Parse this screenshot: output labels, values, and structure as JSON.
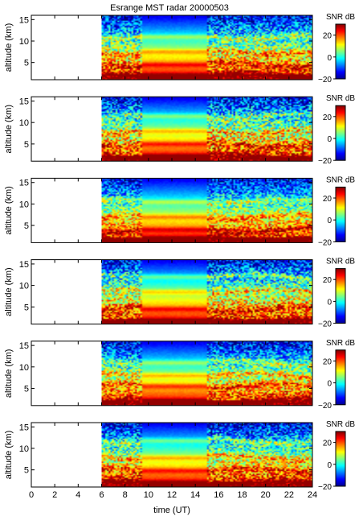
{
  "chart_data": {
    "type": "heatmap",
    "title": "Esrange MST radar 20000503",
    "xlabel": "time (UT)",
    "ylabel": "altitude (km)",
    "xlim": [
      0,
      24
    ],
    "ylim": [
      1,
      16
    ],
    "xticks": [
      "0",
      "2",
      "4",
      "6",
      "8",
      "10",
      "12",
      "14",
      "16",
      "18",
      "20",
      "22",
      "24"
    ],
    "yticks": [
      "5",
      "10",
      "15"
    ],
    "colorbar": {
      "label": "SNR dB",
      "ticks": [
        "20",
        "0",
        "−20"
      ],
      "range": [
        -20,
        30
      ],
      "colormap": "jet"
    },
    "data_start_hour": 6,
    "uniform_block_hours": [
      9.5,
      15
    ],
    "panels": [
      {
        "layer_altitudes_km": [
          2.0,
          4.5,
          7.5,
          11.0
        ],
        "noise_level": 0.2
      },
      {
        "layer_altitudes_km": [
          2.2,
          5.0,
          8.0,
          11.5
        ],
        "noise_level": 0.22
      },
      {
        "layer_altitudes_km": [
          2.0,
          4.0,
          7.0,
          10.5
        ],
        "noise_level": 0.18
      },
      {
        "layer_altitudes_km": [
          1.8,
          4.5,
          8.5,
          12.0
        ],
        "noise_level": 0.21
      },
      {
        "layer_altitudes_km": [
          2.1,
          5.5,
          8.0,
          11.0
        ],
        "noise_level": 0.19
      },
      {
        "layer_altitudes_km": [
          2.0,
          4.8,
          7.8,
          11.8
        ],
        "noise_level": 0.2
      }
    ]
  }
}
